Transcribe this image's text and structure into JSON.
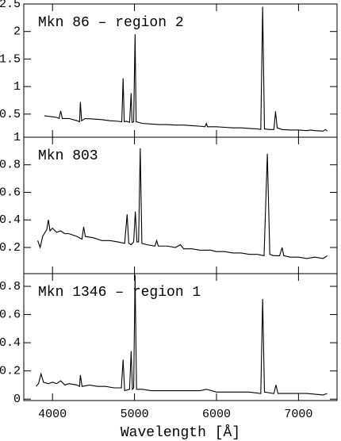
{
  "chart_data": [
    {
      "type": "line",
      "title": "Mkn 86 – region 2",
      "color": "#000000",
      "xlim": [
        3650,
        7470
      ],
      "xticks": [
        4000,
        5000,
        6000,
        7000
      ],
      "ylim": [
        0.08,
        2.5
      ],
      "yticks": [
        0.5,
        1,
        1.5,
        2,
        2.5
      ],
      "x": [
        3900,
        3950,
        4000,
        4050,
        4080,
        4100,
        4120,
        4200,
        4300,
        4330,
        4340,
        4355,
        4400,
        4500,
        4600,
        4700,
        4800,
        4845,
        4861,
        4875,
        4900,
        4940,
        4959,
        4970,
        4990,
        5007,
        5020,
        5100,
        5200,
        5300,
        5400,
        5500,
        5600,
        5700,
        5800,
        5860,
        5876,
        5890,
        6000,
        6100,
        6200,
        6300,
        6400,
        6500,
        6540,
        6563,
        6585,
        6650,
        6700,
        6720,
        6740,
        6800,
        6900,
        7000,
        7100,
        7150,
        7200,
        7300,
        7330,
        7350
      ],
      "values": [
        0.47,
        0.46,
        0.45,
        0.44,
        0.42,
        0.56,
        0.42,
        0.42,
        0.38,
        0.36,
        0.72,
        0.38,
        0.42,
        0.41,
        0.4,
        0.38,
        0.37,
        0.36,
        1.15,
        0.36,
        0.37,
        0.35,
        0.88,
        0.35,
        0.36,
        1.95,
        0.36,
        0.33,
        0.32,
        0.31,
        0.31,
        0.3,
        0.3,
        0.29,
        0.28,
        0.27,
        0.33,
        0.27,
        0.27,
        0.26,
        0.25,
        0.25,
        0.24,
        0.23,
        0.22,
        2.45,
        0.23,
        0.22,
        0.22,
        0.55,
        0.25,
        0.22,
        0.21,
        0.21,
        0.2,
        0.21,
        0.2,
        0.19,
        0.22,
        0.19
      ]
    },
    {
      "type": "line",
      "title": "Mkn 803",
      "color": "#000000",
      "xlim": [
        3650,
        7470
      ],
      "xticks": [
        4000,
        5000,
        6000,
        7000
      ],
      "ylim": [
        0.01,
        1
      ],
      "yticks": [
        0.2,
        0.4,
        0.6,
        0.8,
        1
      ],
      "x": [
        3820,
        3850,
        3880,
        3900,
        3930,
        3950,
        3970,
        4000,
        4050,
        4100,
        4150,
        4200,
        4250,
        4300,
        4360,
        4380,
        4400,
        4500,
        4600,
        4700,
        4800,
        4880,
        4910,
        4930,
        4960,
        4990,
        5010,
        5030,
        5050,
        5070,
        5090,
        5150,
        5250,
        5270,
        5290,
        5400,
        5500,
        5560,
        5600,
        5700,
        5800,
        5930,
        6000,
        6100,
        6200,
        6300,
        6400,
        6500,
        6580,
        6620,
        6650,
        6700,
        6770,
        6800,
        6820,
        6900,
        7000,
        7100,
        7200,
        7300,
        7350
      ],
      "values": [
        0.25,
        0.2,
        0.28,
        0.3,
        0.33,
        0.4,
        0.32,
        0.34,
        0.31,
        0.32,
        0.3,
        0.3,
        0.29,
        0.28,
        0.26,
        0.35,
        0.28,
        0.27,
        0.25,
        0.25,
        0.24,
        0.23,
        0.44,
        0.23,
        0.22,
        0.24,
        0.46,
        0.24,
        0.24,
        0.92,
        0.23,
        0.22,
        0.21,
        0.25,
        0.21,
        0.21,
        0.2,
        0.22,
        0.19,
        0.19,
        0.18,
        0.18,
        0.17,
        0.17,
        0.16,
        0.16,
        0.15,
        0.15,
        0.14,
        0.88,
        0.15,
        0.14,
        0.14,
        0.2,
        0.14,
        0.13,
        0.13,
        0.12,
        0.13,
        0.12,
        0.14
      ]
    },
    {
      "type": "line",
      "title": "Mkn 1346 – region 1",
      "color": "#000000",
      "xlabel": "Wavelength [Å]",
      "xlim": [
        3650,
        7470
      ],
      "xticks": [
        4000,
        5000,
        6000,
        7000
      ],
      "ylim": [
        -0.01,
        0.89
      ],
      "yticks": [
        0,
        0.2,
        0.4,
        0.6,
        0.8
      ],
      "x": [
        3800,
        3830,
        3860,
        3890,
        3950,
        4000,
        4050,
        4100,
        4150,
        4200,
        4300,
        4330,
        4340,
        4360,
        4450,
        4550,
        4650,
        4750,
        4840,
        4861,
        4880,
        4940,
        4959,
        4975,
        4990,
        5007,
        5025,
        5100,
        5200,
        5400,
        5600,
        5800,
        5876,
        6000,
        6200,
        6400,
        6540,
        6563,
        6585,
        6700,
        6725,
        6750,
        6900,
        7100,
        7300,
        7350
      ],
      "values": [
        0.09,
        0.11,
        0.18,
        0.12,
        0.11,
        0.12,
        0.11,
        0.13,
        0.1,
        0.11,
        0.1,
        0.09,
        0.17,
        0.09,
        0.1,
        0.09,
        0.09,
        0.08,
        0.08,
        0.28,
        0.06,
        0.07,
        0.34,
        0.07,
        0.08,
        0.88,
        0.07,
        0.07,
        0.06,
        0.06,
        0.06,
        0.06,
        0.07,
        0.05,
        0.05,
        0.05,
        0.04,
        0.71,
        0.05,
        0.04,
        0.1,
        0.04,
        0.04,
        0.04,
        0.03,
        0.04
      ]
    }
  ]
}
